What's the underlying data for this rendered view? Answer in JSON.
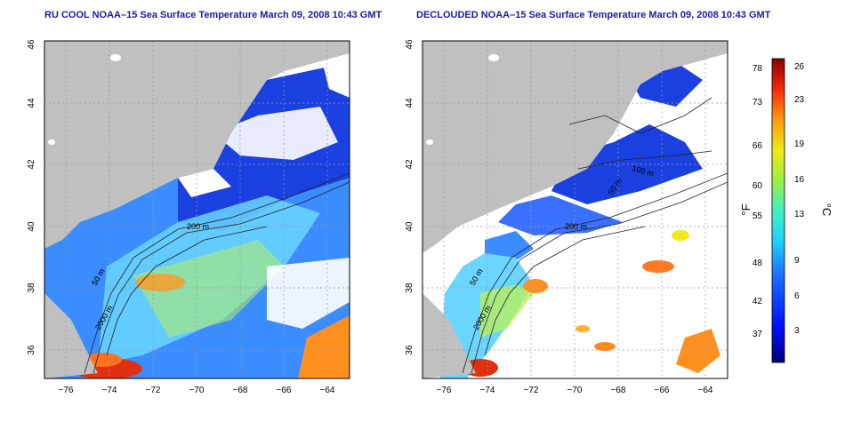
{
  "left_panel": {
    "title": "RU COOL NOAA–15 Sea Surface Temperature March 09, 2008 10:43 GMT",
    "contour_labels": [
      "200 m",
      "50 m",
      "2000 m"
    ]
  },
  "right_panel": {
    "title": "DECLOUDED NOAA–15 Sea Surface Temperature March 09, 2008 10:43 GMT",
    "contour_labels": [
      "200 m",
      "50 m",
      "2000 m",
      "50 m",
      "100 m"
    ]
  },
  "axes": {
    "x_ticks": [
      "−76",
      "−74",
      "−72",
      "−70",
      "−68",
      "−66",
      "−64"
    ],
    "y_ticks": [
      "46",
      "44",
      "42",
      "40",
      "38",
      "36"
    ]
  },
  "colorbar": {
    "label_f": "°F",
    "label_c": "°C",
    "f_ticks": [
      "78",
      "73",
      "66",
      "60",
      "55",
      "48",
      "42",
      "37"
    ],
    "c_ticks": [
      "26",
      "23",
      "19",
      "16",
      "13",
      "9",
      "6",
      "3"
    ]
  },
  "colors": {
    "land": "#c0c0c0",
    "cloud": "#ffffff",
    "cold": "#1030d0",
    "warm": "#d03010",
    "title": "#1a1aa8"
  }
}
